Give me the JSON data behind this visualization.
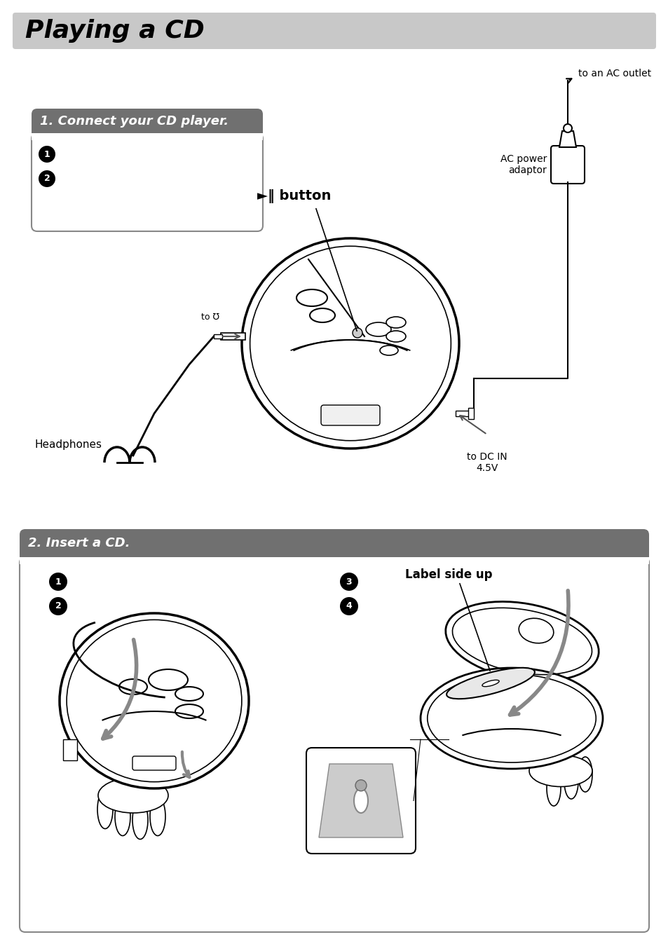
{
  "bg_color": "#ffffff",
  "title_text": "Playing a CD",
  "title_bg": "#c8c8c8",
  "title_font_size": 26,
  "section1_title": "1. Connect your CD player.",
  "section1_bg": "#707070",
  "section2_title": "2. Insert a CD.",
  "section2_bg": "#707070",
  "labels": {
    "headphones": "Headphones",
    "to_headphone": "to ℧",
    "play_button": "►‖ button",
    "ac_adaptor": "AC power\nadaptor",
    "ac_outlet": "to an AC outlet",
    "dc_in": "to DC IN\n4.5V",
    "label_side_up": "Label side up"
  },
  "fig_width": 9.54,
  "fig_height": 13.57
}
